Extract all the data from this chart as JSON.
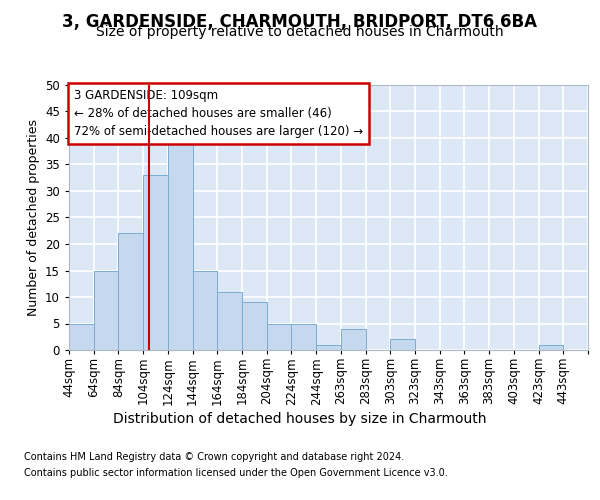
{
  "title1": "3, GARDENSIDE, CHARMOUTH, BRIDPORT, DT6 6BA",
  "title2": "Size of property relative to detached houses in Charmouth",
  "xlabel": "Distribution of detached houses by size in Charmouth",
  "ylabel": "Number of detached properties",
  "footnote1": "Contains HM Land Registry data © Crown copyright and database right 2024.",
  "footnote2": "Contains public sector information licensed under the Open Government Licence v3.0.",
  "annotation_line1": "3 GARDENSIDE: 109sqm",
  "annotation_line2": "← 28% of detached houses are smaller (46)",
  "annotation_line3": "72% of semi-detached houses are larger (120) →",
  "bar_color": "#c5d8ee",
  "bar_edge_color": "#7aadd4",
  "red_line_color": "#cc0000",
  "bin_labels": [
    "44sqm",
    "64sqm",
    "84sqm",
    "104sqm",
    "124sqm",
    "144sqm",
    "164sqm",
    "184sqm",
    "204sqm",
    "224sqm",
    "244sqm",
    "263sqm",
    "283sqm",
    "303sqm",
    "323sqm",
    "343sqm",
    "363sqm",
    "383sqm",
    "403sqm",
    "423sqm",
    "443sqm"
  ],
  "counts": [
    5,
    15,
    22,
    33,
    39,
    15,
    11,
    9,
    5,
    5,
    1,
    4,
    0,
    2,
    0,
    0,
    0,
    0,
    0,
    1,
    0
  ],
  "ylim": [
    0,
    50
  ],
  "yticks": [
    0,
    5,
    10,
    15,
    20,
    25,
    30,
    35,
    40,
    45,
    50
  ],
  "bg_color": "#dce8f5",
  "fig_bg": "#ffffff",
  "grid_color": "#ffffff",
  "annot_box_color": "#ffffff",
  "annot_border_color": "#cc0000",
  "title1_fontsize": 12,
  "title2_fontsize": 10,
  "xlabel_fontsize": 10,
  "ylabel_fontsize": 9,
  "tick_fontsize": 8.5,
  "annot_fontsize": 8.5,
  "footnote_fontsize": 7
}
